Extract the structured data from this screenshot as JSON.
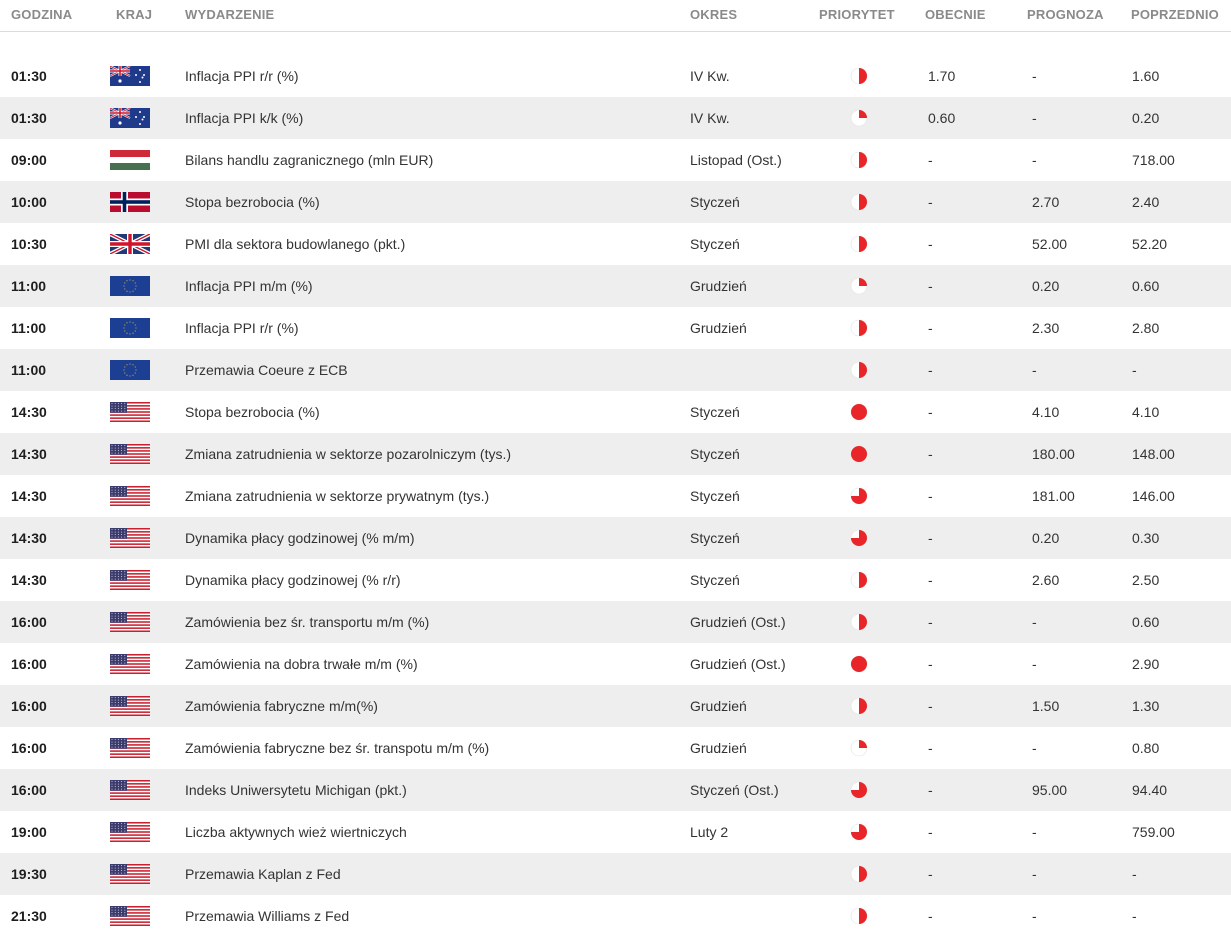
{
  "header": {
    "time": "GODZINA",
    "country": "KRAJ",
    "event": "WYDARZENIE",
    "period": "OKRES",
    "priority": "PRIORYTET",
    "current": "OBECNIE",
    "forecast": "PROGNOZA",
    "previous": "POPRZEDNIO"
  },
  "colors": {
    "priority_red": "#e8262a",
    "row_alt": "#eeeeee",
    "header_text": "#8a8a8a"
  },
  "rows": [
    {
      "time": "01:30",
      "flag": "australia-flag",
      "event": "Inflacja PPI r/r (%)",
      "period": "IV Kw.",
      "priority": 2,
      "current": "1.70",
      "forecast": "-",
      "previous": "1.60"
    },
    {
      "time": "01:30",
      "flag": "australia-flag",
      "event": "Inflacja PPI k/k (%)",
      "period": "IV Kw.",
      "priority": 1,
      "current": "0.60",
      "forecast": "-",
      "previous": "0.20"
    },
    {
      "time": "09:00",
      "flag": "hungary-flag",
      "event": "Bilans handlu zagranicznego (mln EUR)",
      "period": "Listopad (Ost.)",
      "priority": 2,
      "current": "-",
      "forecast": "-",
      "previous": "718.00"
    },
    {
      "time": "10:00",
      "flag": "norway-flag",
      "event": "Stopa bezrobocia (%)",
      "period": "Styczeń",
      "priority": 2,
      "current": "-",
      "forecast": "2.70",
      "previous": "2.40"
    },
    {
      "time": "10:30",
      "flag": "uk-flag",
      "event": "PMI dla sektora budowlanego (pkt.)",
      "period": "Styczeń",
      "priority": 2,
      "current": "-",
      "forecast": "52.00",
      "previous": "52.20"
    },
    {
      "time": "11:00",
      "flag": "eu-flag",
      "event": "Inflacja PPI m/m (%)",
      "period": "Grudzień",
      "priority": 1,
      "current": "-",
      "forecast": "0.20",
      "previous": "0.60"
    },
    {
      "time": "11:00",
      "flag": "eu-flag",
      "event": "Inflacja PPI r/r (%)",
      "period": "Grudzień",
      "priority": 2,
      "current": "-",
      "forecast": "2.30",
      "previous": "2.80"
    },
    {
      "time": "11:00",
      "flag": "eu-flag",
      "event": "Przemawia Coeure z ECB",
      "period": "",
      "priority": 2,
      "current": "-",
      "forecast": "-",
      "previous": "-"
    },
    {
      "time": "14:30",
      "flag": "usa-flag",
      "event": "Stopa bezrobocia (%)",
      "period": "Styczeń",
      "priority": 4,
      "current": "-",
      "forecast": "4.10",
      "previous": "4.10"
    },
    {
      "time": "14:30",
      "flag": "usa-flag",
      "event": "Zmiana zatrudnienia w sektorze pozarolniczym (tys.)",
      "period": "Styczeń",
      "priority": 4,
      "current": "-",
      "forecast": "180.00",
      "previous": "148.00"
    },
    {
      "time": "14:30",
      "flag": "usa-flag",
      "event": "Zmiana zatrudnienia w sektorze prywatnym (tys.)",
      "period": "Styczeń",
      "priority": 3,
      "current": "-",
      "forecast": "181.00",
      "previous": "146.00"
    },
    {
      "time": "14:30",
      "flag": "usa-flag",
      "event": "Dynamika płacy godzinowej (% m/m)",
      "period": "Styczeń",
      "priority": 3,
      "current": "-",
      "forecast": "0.20",
      "previous": "0.30"
    },
    {
      "time": "14:30",
      "flag": "usa-flag",
      "event": "Dynamika płacy godzinowej (% r/r)",
      "period": "Styczeń",
      "priority": 2,
      "current": "-",
      "forecast": "2.60",
      "previous": "2.50"
    },
    {
      "time": "16:00",
      "flag": "usa-flag",
      "event": "Zamówienia bez śr. transportu m/m (%)",
      "period": "Grudzień (Ost.)",
      "priority": 2,
      "current": "-",
      "forecast": "-",
      "previous": "0.60"
    },
    {
      "time": "16:00",
      "flag": "usa-flag",
      "event": "Zamówienia na dobra trwałe m/m (%)",
      "period": "Grudzień (Ost.)",
      "priority": 4,
      "current": "-",
      "forecast": "-",
      "previous": "2.90"
    },
    {
      "time": "16:00",
      "flag": "usa-flag",
      "event": "Zamówienia fabryczne m/m(%)",
      "period": "Grudzień",
      "priority": 2,
      "current": "-",
      "forecast": "1.50",
      "previous": "1.30"
    },
    {
      "time": "16:00",
      "flag": "usa-flag",
      "event": "Zamówienia fabryczne bez śr. transpotu m/m (%)",
      "period": "Grudzień",
      "priority": 1,
      "current": "-",
      "forecast": "-",
      "previous": "0.80"
    },
    {
      "time": "16:00",
      "flag": "usa-flag",
      "event": "Indeks Uniwersytetu Michigan (pkt.)",
      "period": "Styczeń (Ost.)",
      "priority": 3,
      "current": "-",
      "forecast": "95.00",
      "previous": "94.40"
    },
    {
      "time": "19:00",
      "flag": "usa-flag",
      "event": "Liczba aktywnych wież wiertniczych",
      "period": "Luty 2",
      "priority": 3,
      "current": "-",
      "forecast": "-",
      "previous": "759.00"
    },
    {
      "time": "19:30",
      "flag": "usa-flag",
      "event": "Przemawia Kaplan z Fed",
      "period": "",
      "priority": 2,
      "current": "-",
      "forecast": "-",
      "previous": "-"
    },
    {
      "time": "21:30",
      "flag": "usa-flag",
      "event": "Przemawia Williams z Fed",
      "period": "",
      "priority": 2,
      "current": "-",
      "forecast": "-",
      "previous": "-"
    }
  ]
}
